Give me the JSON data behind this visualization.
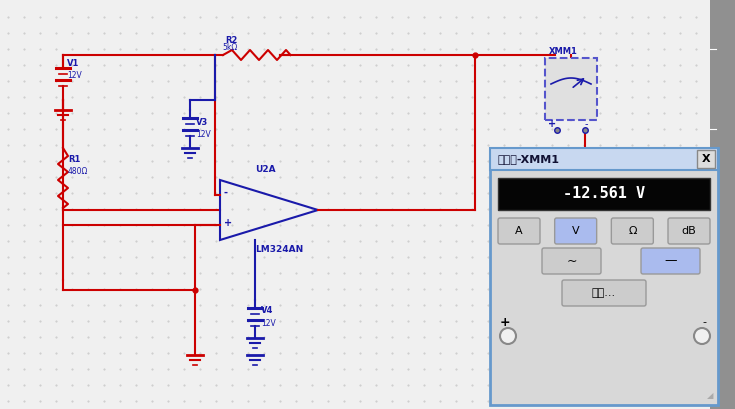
{
  "bg_color": "#f0f0f0",
  "wire_color": "#cc0000",
  "component_color": "#1a1aaa",
  "right_panel_color": "#909090",
  "multimeter_title": "万用表-XMM1",
  "multimeter_value": "-12.561 V",
  "settings_btn": "设置...",
  "xmm_label": "XMM1",
  "v1_label": "V1",
  "v1_val": "12V",
  "v3_label": "V3",
  "v3_val": "12V",
  "v4_label": "V4",
  "v4_val": "12V",
  "r1_label": "R1",
  "r1_val": "480Ω",
  "r2_label": "R2",
  "r2_val": "5kΩ",
  "u2a_label": "U2A",
  "lm_label": "LM324AN"
}
